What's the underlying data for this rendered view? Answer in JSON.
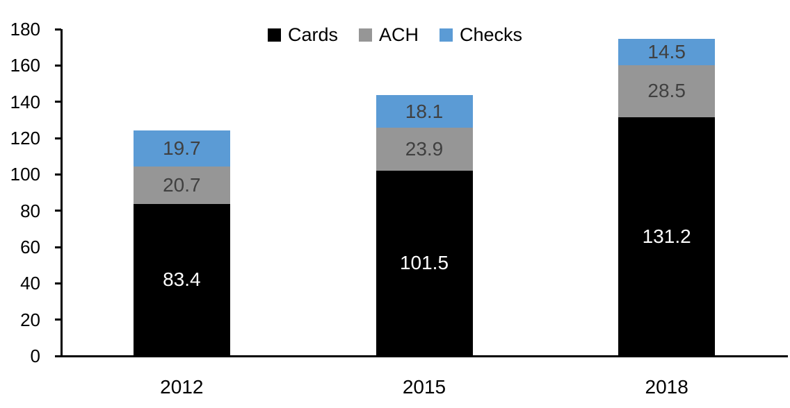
{
  "chart_data": {
    "type": "bar",
    "stacked": true,
    "title": "",
    "xlabel": "",
    "ylabel": "",
    "categories": [
      "2012",
      "2015",
      "2018"
    ],
    "series": [
      {
        "name": "Cards",
        "color": "#000000",
        "label_color": "#ffffff",
        "values": [
          83.4,
          101.5,
          131.2
        ]
      },
      {
        "name": "ACH",
        "color": "#969696",
        "label_color": "#404040",
        "values": [
          20.7,
          23.9,
          28.5
        ]
      },
      {
        "name": "Checks",
        "color": "#5b9bd5",
        "label_color": "#404040",
        "values": [
          19.7,
          18.1,
          14.5
        ]
      }
    ],
    "totals": [
      123.8,
      143.5,
      174.2
    ],
    "ylim": [
      0,
      180
    ],
    "yticks": [
      0,
      20,
      40,
      60,
      80,
      100,
      120,
      140,
      160,
      180
    ],
    "grid": false,
    "legend_position": "top-center",
    "data_labels": true,
    "axis_color": "#000000",
    "background_color": "#ffffff"
  }
}
